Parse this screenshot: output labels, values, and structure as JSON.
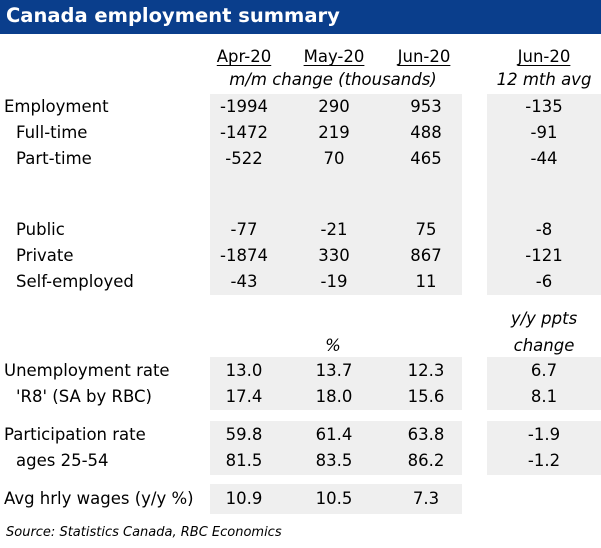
{
  "title": "Canada employment summary",
  "columns": {
    "apr": "Apr-20",
    "may": "May-20",
    "jun": "Jun-20",
    "avg": "Jun-20"
  },
  "subheaders": {
    "mm": "m/m change (thousands)",
    "avg": "12 mth avg",
    "pct": "%",
    "yy1": "y/y ppts",
    "yy2": "change"
  },
  "rows": [
    {
      "label": "Employment",
      "apr": "-1994",
      "may": "290",
      "jun": "953",
      "avg": "-135"
    },
    {
      "label": "Full-time",
      "apr": "-1472",
      "may": "219",
      "jun": "488",
      "avg": "-91"
    },
    {
      "label": "Part-time",
      "apr": "-522",
      "may": "70",
      "jun": "465",
      "avg": "-44"
    },
    {
      "label": "Public",
      "apr": "-77",
      "may": "-21",
      "jun": "75",
      "avg": "-8"
    },
    {
      "label": "Private",
      "apr": "-1874",
      "may": "330",
      "jun": "867",
      "avg": "-121"
    },
    {
      "label": "Self-employed",
      "apr": "-43",
      "may": "-19",
      "jun": "11",
      "avg": "-6"
    },
    {
      "label": "Unemployment rate",
      "apr": "13.0",
      "may": "13.7",
      "jun": "12.3",
      "avg": "6.7"
    },
    {
      "label": "'R8' (SA by RBC)",
      "apr": "17.4",
      "may": "18.0",
      "jun": "15.6",
      "avg": "8.1"
    },
    {
      "label": "Participation rate",
      "apr": "59.8",
      "may": "61.4",
      "jun": "63.8",
      "avg": "-1.9"
    },
    {
      "label": "ages 25-54",
      "apr": "81.5",
      "may": "83.5",
      "jun": "86.2",
      "avg": "-1.2"
    },
    {
      "label": "Avg hrly wages (y/y %)",
      "apr": "10.9",
      "may": "10.5",
      "jun": "7.3",
      "avg": ""
    }
  ],
  "source": "Source:  Statistics Canada, RBC Economics",
  "colors": {
    "title_bg": "#0a3e8c",
    "title_text": "#ffffff",
    "shade": "#efefef"
  }
}
